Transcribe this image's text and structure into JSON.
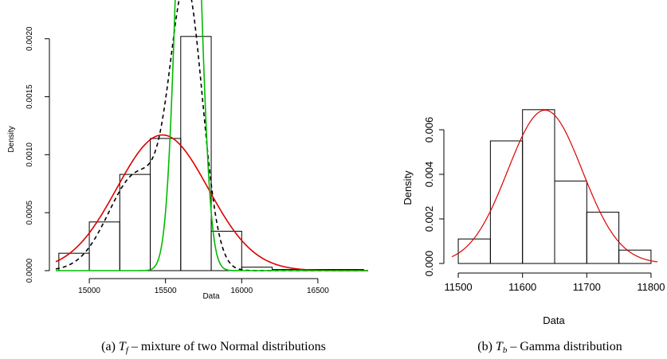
{
  "chart_data": [
    {
      "type": "histogram",
      "id": "a",
      "xlabel": "Data",
      "ylabel": "Density",
      "xlim": [
        14780,
        16830
      ],
      "ylim": [
        0,
        0.0023
      ],
      "x_ticks": [
        15000,
        15500,
        16000,
        16500
      ],
      "x_tick_labels": [
        "15000",
        "15500",
        "16000",
        "16500"
      ],
      "y_ticks": [
        0,
        0.0005,
        0.001,
        0.0015,
        0.002
      ],
      "y_tick_labels": [
        "0.0000",
        "0.0005",
        "0.0010",
        "0.0015",
        "0.0020"
      ],
      "bins": [
        {
          "from": 14800,
          "to": 15000,
          "value": 0.00015
        },
        {
          "from": 15000,
          "to": 15200,
          "value": 0.00042
        },
        {
          "from": 15200,
          "to": 15400,
          "value": 0.00083
        },
        {
          "from": 15400,
          "to": 15600,
          "value": 0.00114
        },
        {
          "from": 15600,
          "to": 15800,
          "value": 0.00202
        },
        {
          "from": 15800,
          "to": 16000,
          "value": 0.00034
        },
        {
          "from": 16000,
          "to": 16200,
          "value": 3e-05
        },
        {
          "from": 16200,
          "to": 16400,
          "value": 1e-05
        },
        {
          "from": 16400,
          "to": 16600,
          "value": 1e-05
        },
        {
          "from": 16600,
          "to": 16800,
          "value": 1e-05
        }
      ],
      "curves": [
        {
          "style": "dashed",
          "color": "#000000",
          "kind": "normal-mixture",
          "components": [
            {
              "w": 0.4,
              "mu": 15320,
              "sd": 190
            },
            {
              "w": 0.6,
              "mu": 15640,
              "sd": 105
            }
          ]
        },
        {
          "style": "solid",
          "color": "#dd0000",
          "kind": "normal",
          "mu": 15480,
          "sd": 300,
          "scale": 0.88
        },
        {
          "style": "solid",
          "color": "#00bb00",
          "kind": "normal",
          "mu": 15650,
          "sd": 70,
          "scale": 0.88
        }
      ],
      "caption_prefix": "(a) ",
      "caption_math_base": "T",
      "caption_math_sub": "f",
      "caption_rest": " – mixture of two Normal distributions"
    },
    {
      "type": "histogram",
      "id": "b",
      "xlabel": "Data",
      "ylabel": "Density",
      "xlim": [
        11490,
        11810
      ],
      "ylim": [
        0,
        0.007
      ],
      "x_ticks": [
        11500,
        11600,
        11700,
        11800
      ],
      "x_tick_labels": [
        "11500",
        "11600",
        "11700",
        "11800"
      ],
      "y_ticks": [
        0,
        0.002,
        0.004,
        0.006
      ],
      "y_tick_labels": [
        "0.000",
        "0.002",
        "0.004",
        "0.006"
      ],
      "bins": [
        {
          "from": 11500,
          "to": 11550,
          "value": 0.0011
        },
        {
          "from": 11550,
          "to": 11600,
          "value": 0.0055
        },
        {
          "from": 11600,
          "to": 11650,
          "value": 0.0069
        },
        {
          "from": 11650,
          "to": 11700,
          "value": 0.0037
        },
        {
          "from": 11700,
          "to": 11750,
          "value": 0.0023
        },
        {
          "from": 11750,
          "to": 11800,
          "value": 0.0006
        }
      ],
      "curves": [
        {
          "style": "solid",
          "color": "#dd0000",
          "kind": "normal",
          "mu": 11635,
          "sd": 58,
          "scale": 1.0
        }
      ],
      "caption_prefix": "(b) ",
      "caption_math_base": "T",
      "caption_math_sub": "b",
      "caption_rest": " – Gamma distribution"
    }
  ]
}
